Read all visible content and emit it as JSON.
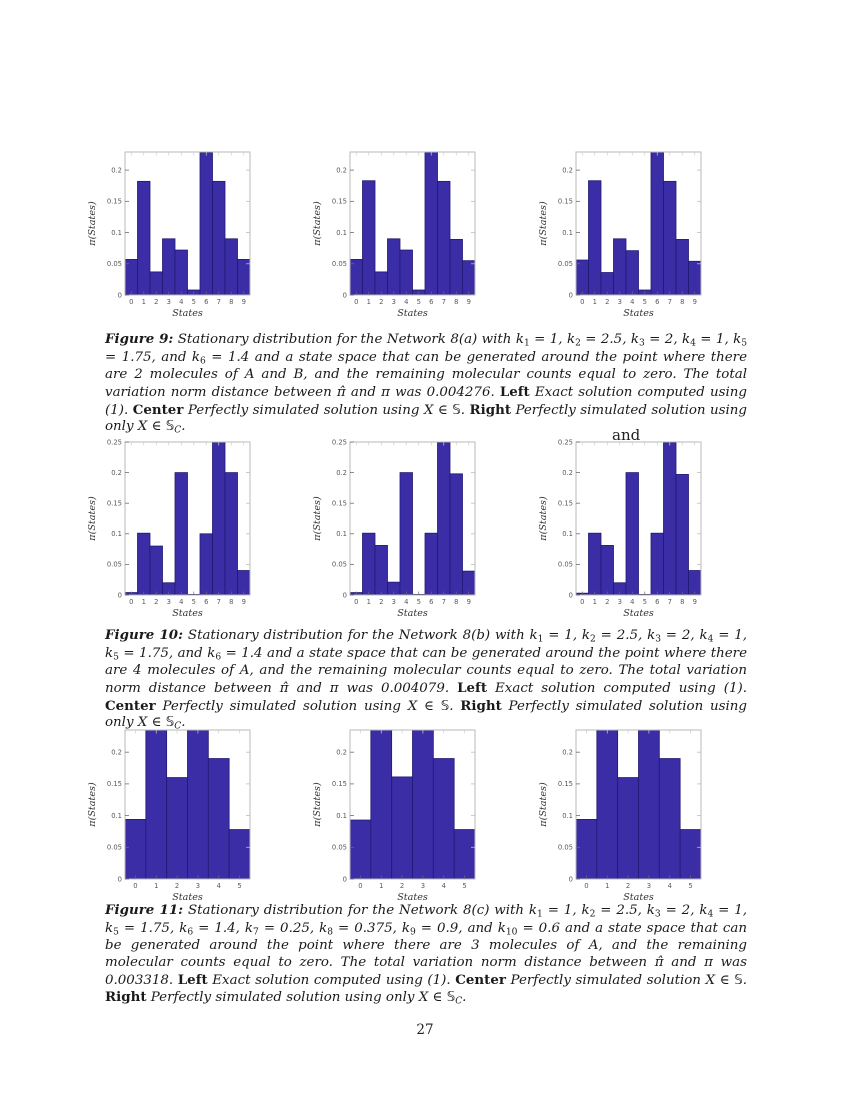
{
  "page_number": "27",
  "stray_text": "and",
  "chart_data": [
    {
      "figure": "Figure 9",
      "type": "bar",
      "categories": [
        "0",
        "1",
        "2",
        "3",
        "4",
        "5",
        "6",
        "7",
        "8",
        "9"
      ],
      "xlabel": "States",
      "ylabel": "π(States)",
      "yticks": [
        "0",
        "0.05",
        "0.1",
        "0.15",
        "0.2"
      ],
      "ytick_values": [
        0,
        0.05,
        0.1,
        0.15,
        0.2
      ],
      "ylim": [
        0,
        0.229
      ],
      "bar_color": "#3b2da6",
      "bar_edge": "#221a72",
      "legend": "none",
      "series": [
        {
          "name": "left-exact-solution",
          "values": [
            0.057,
            0.182,
            0.037,
            0.09,
            0.072,
            0.008,
            0.228,
            0.182,
            0.09,
            0.057
          ]
        },
        {
          "name": "center-perfectly-simulated-S",
          "values": [
            0.057,
            0.183,
            0.037,
            0.09,
            0.072,
            0.008,
            0.229,
            0.182,
            0.089,
            0.055
          ]
        },
        {
          "name": "right-perfectly-simulated-SC",
          "values": [
            0.056,
            0.183,
            0.036,
            0.09,
            0.071,
            0.008,
            0.229,
            0.182,
            0.089,
            0.054
          ]
        }
      ]
    },
    {
      "figure": "Figure 10",
      "type": "bar",
      "categories": [
        "0",
        "1",
        "2",
        "3",
        "4",
        "5",
        "6",
        "7",
        "8",
        "9"
      ],
      "xlabel": "States",
      "ylabel": "π(States)",
      "yticks": [
        "0",
        "0.05",
        "0.1",
        "0.15",
        "0.2",
        "0.25"
      ],
      "ytick_values": [
        0,
        0.05,
        0.1,
        0.15,
        0.2,
        0.25
      ],
      "ylim": [
        0,
        0.25
      ],
      "bar_color": "#3b2da6",
      "bar_edge": "#221a72",
      "legend": "none",
      "series": [
        {
          "name": "left-exact-solution",
          "values": [
            0.004,
            0.101,
            0.08,
            0.02,
            0.2,
            0.001,
            0.1,
            0.25,
            0.2,
            0.04
          ]
        },
        {
          "name": "center-perfectly-simulated-S",
          "values": [
            0.004,
            0.101,
            0.081,
            0.021,
            0.2,
            0.001,
            0.101,
            0.249,
            0.198,
            0.039
          ]
        },
        {
          "name": "right-perfectly-simulated-SC",
          "values": [
            0.003,
            0.101,
            0.081,
            0.02,
            0.2,
            0.001,
            0.101,
            0.249,
            0.197,
            0.04
          ]
        }
      ]
    },
    {
      "figure": "Figure 11",
      "type": "bar",
      "categories": [
        "0",
        "1",
        "2",
        "3",
        "4",
        "5"
      ],
      "xlabel": "States",
      "ylabel": "π(States)",
      "yticks": [
        "0",
        "0.05",
        "0.1",
        "0.15",
        "0.2"
      ],
      "ytick_values": [
        0,
        0.05,
        0.1,
        0.15,
        0.2
      ],
      "ylim": [
        0,
        0.235
      ],
      "bar_color": "#3b2da6",
      "bar_edge": "#221a72",
      "legend": "none",
      "series": [
        {
          "name": "left-exact-solution",
          "values": [
            0.094,
            0.235,
            0.16,
            0.235,
            0.19,
            0.078
          ]
        },
        {
          "name": "center-perfectly-simulated-S",
          "values": [
            0.093,
            0.235,
            0.161,
            0.235,
            0.19,
            0.078
          ]
        },
        {
          "name": "right-perfectly-simulated-SC",
          "values": [
            0.094,
            0.235,
            0.16,
            0.235,
            0.19,
            0.078
          ]
        }
      ]
    }
  ],
  "captions": {
    "fig9": {
      "segments": [
        {
          "t": "Figure 9:",
          "b": 1,
          "i": 1
        },
        {
          "t": "  Stationary distribution for the Network 8(a) with ",
          "i": 1
        },
        {
          "t": "k",
          "i": 1
        },
        {
          "t": "1",
          "s": 1
        },
        {
          "t": " = 1, ",
          "i": 1
        },
        {
          "t": "k",
          "i": 1
        },
        {
          "t": "2",
          "s": 1
        },
        {
          "t": " = 2.5, ",
          "i": 1
        },
        {
          "t": "k",
          "i": 1
        },
        {
          "t": "3",
          "s": 1
        },
        {
          "t": " = 2, ",
          "i": 1
        },
        {
          "t": "k",
          "i": 1
        },
        {
          "t": "4",
          "s": 1
        },
        {
          "t": " = 1, ",
          "i": 1
        },
        {
          "t": "k",
          "i": 1
        },
        {
          "t": "5",
          "s": 1
        },
        {
          "t": " = 1.75, and ",
          "i": 1
        },
        {
          "t": "k",
          "i": 1
        },
        {
          "t": "6",
          "s": 1
        },
        {
          "t": " = 1.4 and a state space that can be generated around the point where there are 2 molecules of ",
          "i": 1
        },
        {
          "t": "A",
          "i": 1
        },
        {
          "t": " and ",
          "i": 1
        },
        {
          "t": "B",
          "i": 1
        },
        {
          "t": ", and the remaining molecular counts equal to zero.  The total variation norm distance between ",
          "i": 1
        },
        {
          "t": "π̂",
          "i": 1
        },
        {
          "t": " and ",
          "i": 1
        },
        {
          "t": "π",
          "i": 1
        },
        {
          "t": " was 0.004276. ",
          "i": 1
        },
        {
          "t": "Left",
          "b": 1
        },
        {
          "t": " Exact solution computed using (1). ",
          "i": 1
        },
        {
          "t": "Center",
          "b": 1
        },
        {
          "t": " Perfectly simulated solution using ",
          "i": 1
        },
        {
          "t": "X",
          "i": 1
        },
        {
          "t": " ∈ "
        },
        {
          "t": "𝕊",
          "d": 1
        },
        {
          "t": ". ",
          "i": 1
        },
        {
          "t": "Right",
          "b": 1
        },
        {
          "t": " Perfectly simulated solution using only ",
          "i": 1
        },
        {
          "t": "X",
          "i": 1
        },
        {
          "t": " ∈ "
        },
        {
          "t": "𝕊",
          "d": 1
        },
        {
          "t": "C",
          "s": 1,
          "i": 1
        },
        {
          "t": ".",
          "i": 1
        }
      ]
    },
    "fig10": {
      "segments": [
        {
          "t": "Figure 10:",
          "b": 1,
          "i": 1
        },
        {
          "t": "  Stationary distribution for the Network 8(b) with ",
          "i": 1
        },
        {
          "t": "k",
          "i": 1
        },
        {
          "t": "1",
          "s": 1
        },
        {
          "t": " = 1, ",
          "i": 1
        },
        {
          "t": "k",
          "i": 1
        },
        {
          "t": "2",
          "s": 1
        },
        {
          "t": " = 2.5, ",
          "i": 1
        },
        {
          "t": "k",
          "i": 1
        },
        {
          "t": "3",
          "s": 1
        },
        {
          "t": " = 2, ",
          "i": 1
        },
        {
          "t": "k",
          "i": 1
        },
        {
          "t": "4",
          "s": 1
        },
        {
          "t": " = 1, ",
          "i": 1
        },
        {
          "t": "k",
          "i": 1
        },
        {
          "t": "5",
          "s": 1
        },
        {
          "t": " = 1.75, and ",
          "i": 1
        },
        {
          "t": "k",
          "i": 1
        },
        {
          "t": "6",
          "s": 1
        },
        {
          "t": " = 1.4 and a state space that can be generated around the point where there are 4 molecules of ",
          "i": 1
        },
        {
          "t": "A",
          "i": 1
        },
        {
          "t": ", and the remaining molecular counts equal to zero. The total variation norm distance between ",
          "i": 1
        },
        {
          "t": "π̂",
          "i": 1
        },
        {
          "t": " and ",
          "i": 1
        },
        {
          "t": "π",
          "i": 1
        },
        {
          "t": " was 0.004079. ",
          "i": 1
        },
        {
          "t": "Left",
          "b": 1
        },
        {
          "t": " Exact solution computed using (1). ",
          "i": 1
        },
        {
          "t": "Center",
          "b": 1
        },
        {
          "t": " Perfectly simulated solution using ",
          "i": 1
        },
        {
          "t": "X",
          "i": 1
        },
        {
          "t": " ∈ "
        },
        {
          "t": "𝕊",
          "d": 1
        },
        {
          "t": ". ",
          "i": 1
        },
        {
          "t": "Right",
          "b": 1
        },
        {
          "t": " Perfectly simulated solution using only ",
          "i": 1
        },
        {
          "t": "X",
          "i": 1
        },
        {
          "t": " ∈ "
        },
        {
          "t": "𝕊",
          "d": 1
        },
        {
          "t": "C",
          "s": 1,
          "i": 1
        },
        {
          "t": ".",
          "i": 1
        }
      ]
    },
    "fig11": {
      "segments": [
        {
          "t": "Figure 11:",
          "b": 1,
          "i": 1
        },
        {
          "t": "  Stationary distribution for the Network 8(c) with ",
          "i": 1
        },
        {
          "t": "k",
          "i": 1
        },
        {
          "t": "1",
          "s": 1
        },
        {
          "t": " = 1, ",
          "i": 1
        },
        {
          "t": "k",
          "i": 1
        },
        {
          "t": "2",
          "s": 1
        },
        {
          "t": " = 2.5, ",
          "i": 1
        },
        {
          "t": "k",
          "i": 1
        },
        {
          "t": "3",
          "s": 1
        },
        {
          "t": " = 2, ",
          "i": 1
        },
        {
          "t": "k",
          "i": 1
        },
        {
          "t": "4",
          "s": 1
        },
        {
          "t": " = 1, ",
          "i": 1
        },
        {
          "t": "k",
          "i": 1
        },
        {
          "t": "5",
          "s": 1
        },
        {
          "t": " = 1.75, ",
          "i": 1
        },
        {
          "t": "k",
          "i": 1
        },
        {
          "t": "6",
          "s": 1
        },
        {
          "t": " = 1.4, ",
          "i": 1
        },
        {
          "t": "k",
          "i": 1
        },
        {
          "t": "7",
          "s": 1
        },
        {
          "t": " = 0.25, ",
          "i": 1
        },
        {
          "t": "k",
          "i": 1
        },
        {
          "t": "8",
          "s": 1
        },
        {
          "t": " = 0.375, ",
          "i": 1
        },
        {
          "t": "k",
          "i": 1
        },
        {
          "t": "9",
          "s": 1
        },
        {
          "t": " = 0.9, and ",
          "i": 1
        },
        {
          "t": "k",
          "i": 1
        },
        {
          "t": "10",
          "s": 1
        },
        {
          "t": " = 0.6 and a state space that can be generated around the point where there are 3 molecules of ",
          "i": 1
        },
        {
          "t": "A",
          "i": 1
        },
        {
          "t": ", and the remaining molecular counts equal to zero.  The total variation norm distance between ",
          "i": 1
        },
        {
          "t": "π̂",
          "i": 1
        },
        {
          "t": " and ",
          "i": 1
        },
        {
          "t": "π",
          "i": 1
        },
        {
          "t": " was 0.003318. ",
          "i": 1
        },
        {
          "t": "Left",
          "b": 1
        },
        {
          "t": " Exact solution computed using (1). ",
          "i": 1
        },
        {
          "t": "Center",
          "b": 1
        },
        {
          "t": " Perfectly simulated solution ",
          "i": 1
        },
        {
          "t": "X",
          "i": 1
        },
        {
          "t": " ∈ "
        },
        {
          "t": "𝕊",
          "d": 1
        },
        {
          "t": ". ",
          "i": 1
        },
        {
          "t": "Right",
          "b": 1
        },
        {
          "t": " Perfectly simulated solution using only ",
          "i": 1
        },
        {
          "t": "X",
          "i": 1
        },
        {
          "t": " ∈ "
        },
        {
          "t": "𝕊",
          "d": 1
        },
        {
          "t": "C",
          "s": 1,
          "i": 1
        },
        {
          "t": ".",
          "i": 1
        }
      ]
    }
  }
}
